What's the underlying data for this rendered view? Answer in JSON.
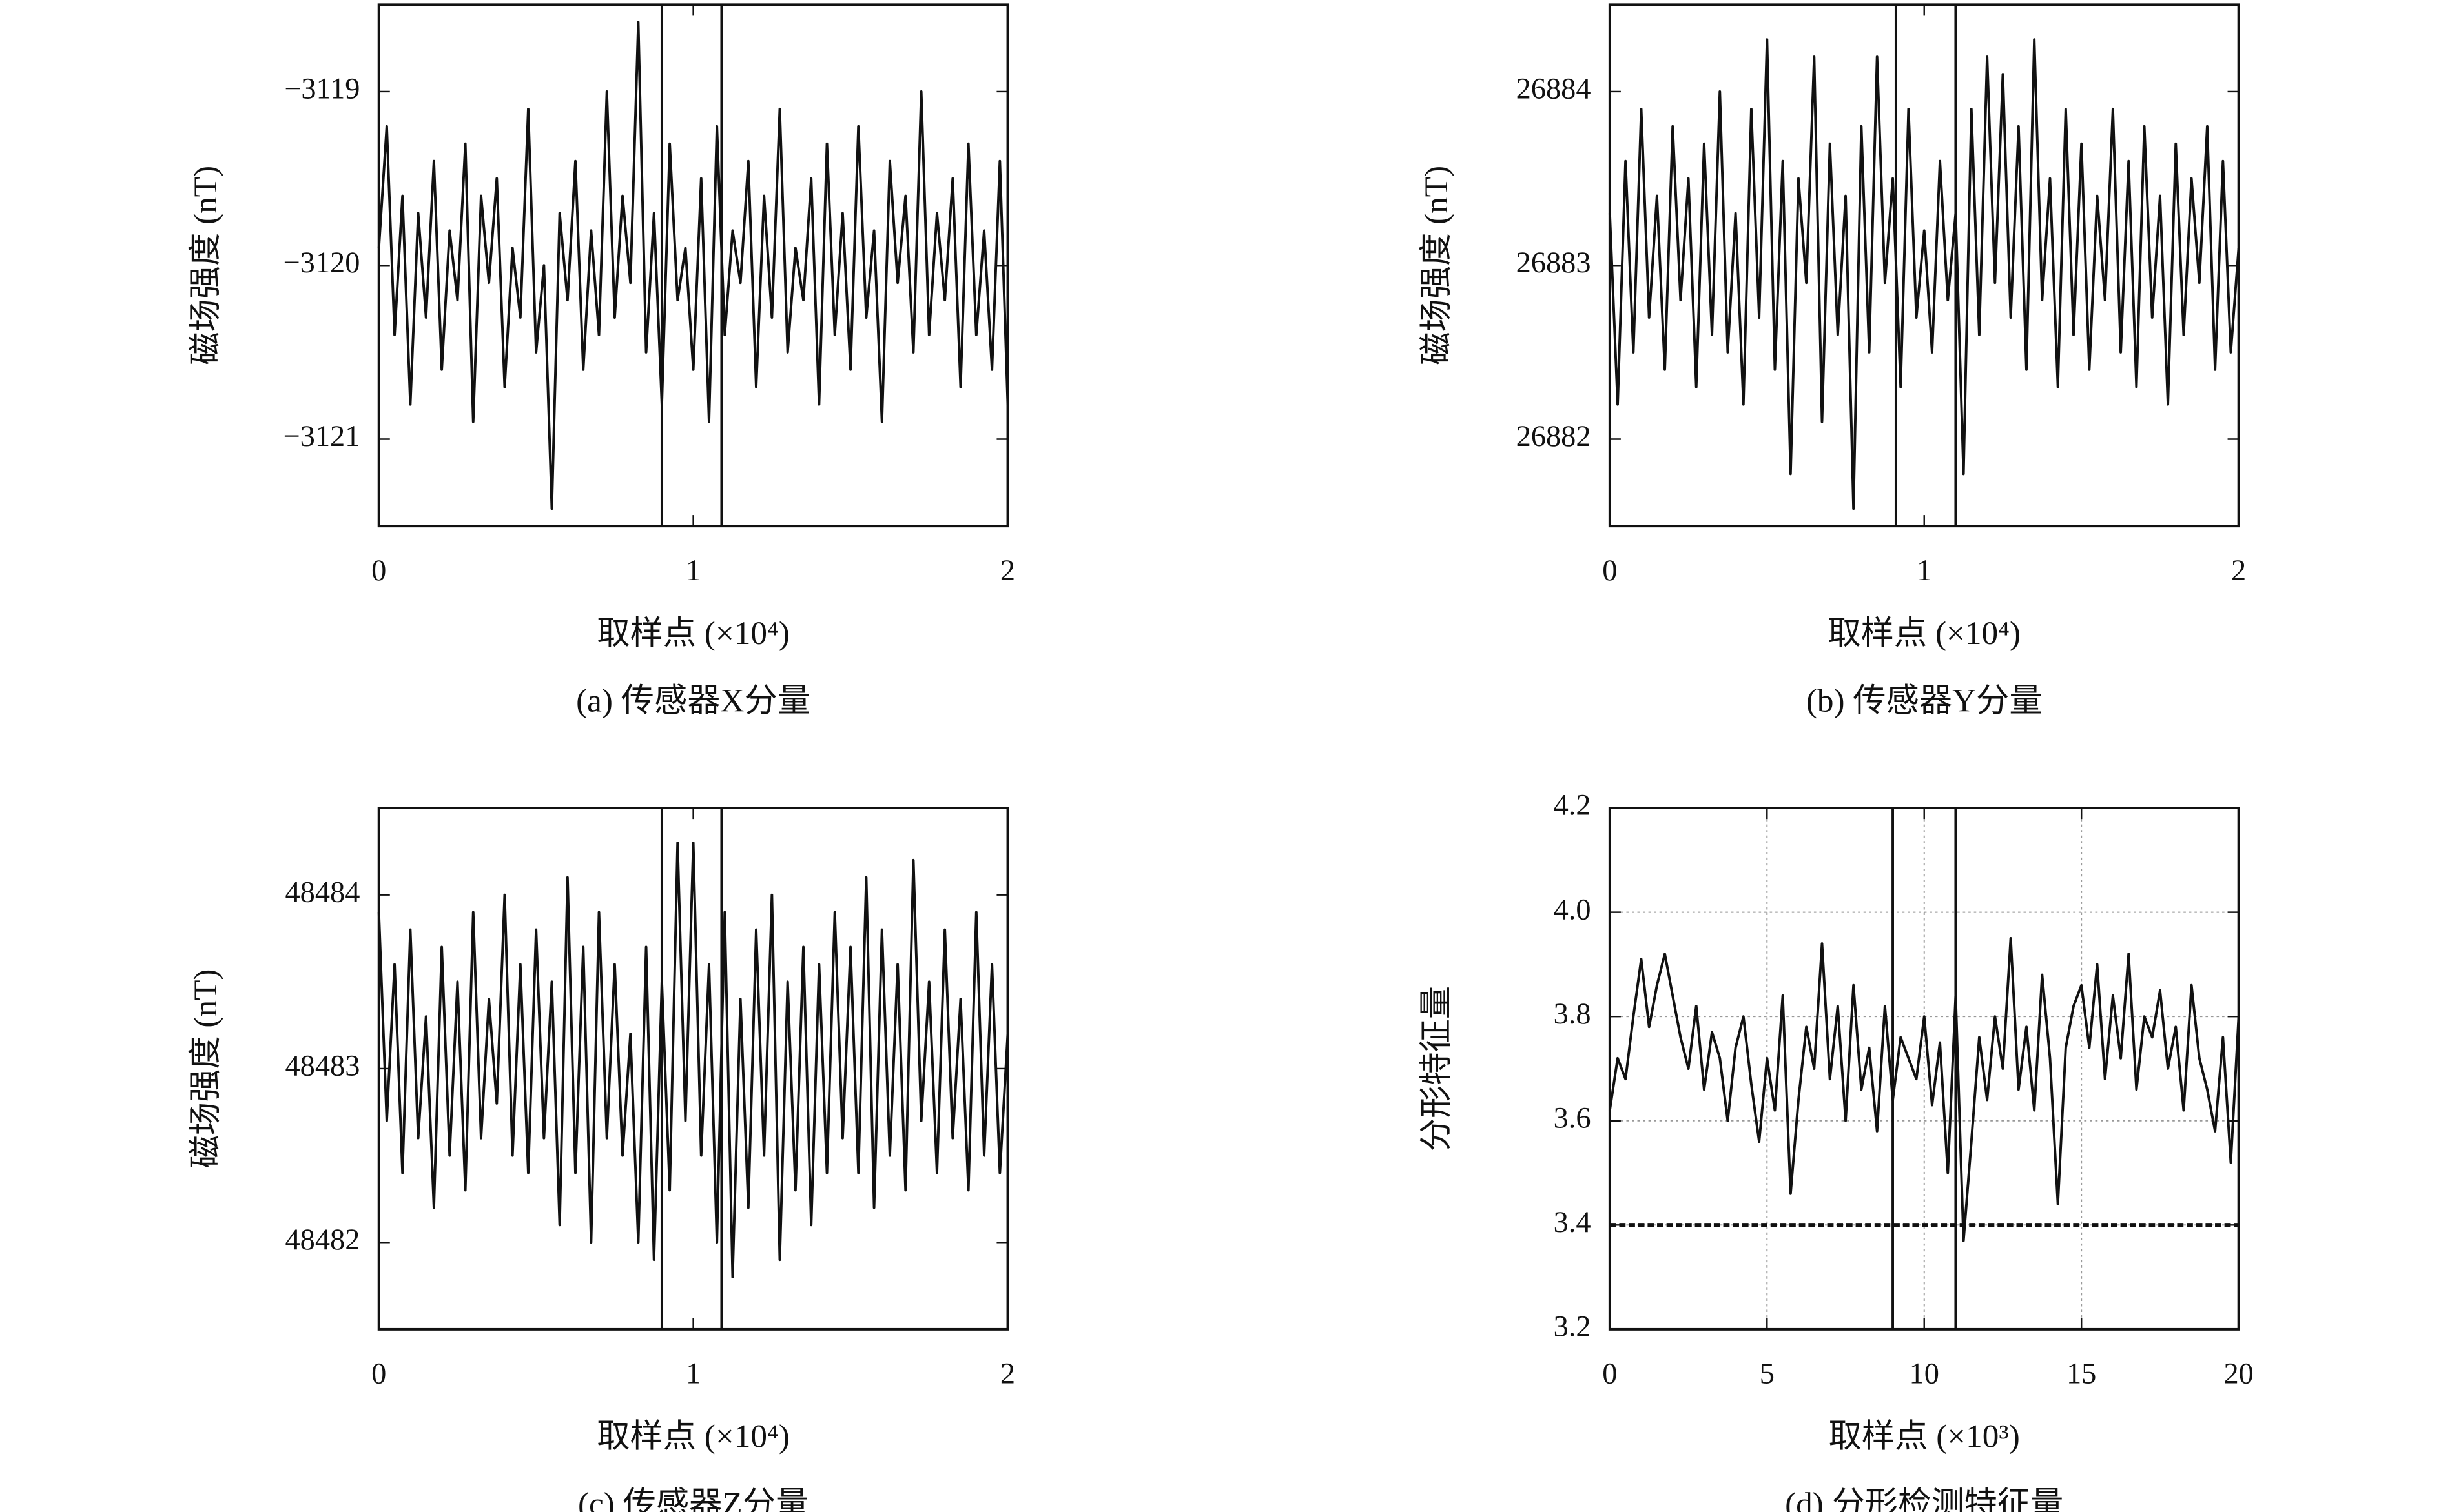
{
  "chart_data": [
    {
      "type": "line",
      "title": "(a) 传感器X分量",
      "xlabel": "取样点 (×10⁴)",
      "ylabel": "磁场强度 (nT)",
      "color": "#111111",
      "x": [
        0,
        0.025,
        0.05,
        0.075,
        0.1,
        0.125,
        0.15,
        0.175,
        0.2,
        0.225,
        0.25,
        0.275,
        0.3,
        0.325,
        0.35,
        0.375,
        0.4,
        0.425,
        0.45,
        0.475,
        0.5,
        0.525,
        0.55,
        0.575,
        0.6,
        0.625,
        0.65,
        0.675,
        0.7,
        0.725,
        0.75,
        0.775,
        0.8,
        0.825,
        0.85,
        0.875,
        0.9,
        0.925,
        0.95,
        0.975,
        1,
        1.025,
        1.05,
        1.075,
        1.1,
        1.125,
        1.15,
        1.175,
        1.2,
        1.225,
        1.25,
        1.275,
        1.3,
        1.325,
        1.35,
        1.375,
        1.4,
        1.425,
        1.45,
        1.475,
        1.5,
        1.525,
        1.55,
        1.575,
        1.6,
        1.625,
        1.65,
        1.675,
        1.7,
        1.725,
        1.75,
        1.775,
        1.8,
        1.825,
        1.85,
        1.875,
        1.9,
        1.925,
        1.95,
        1.975,
        2
      ],
      "values": [
        -3119.9,
        -3119.2,
        -3120.4,
        -3119.6,
        -3120.8,
        -3119.7,
        -3120.3,
        -3119.4,
        -3120.6,
        -3119.8,
        -3120.2,
        -3119.3,
        -3120.9,
        -3119.6,
        -3120.1,
        -3119.5,
        -3120.7,
        -3119.9,
        -3120.3,
        -3119.1,
        -3120.5,
        -3120.0,
        -3121.4,
        -3119.7,
        -3120.2,
        -3119.4,
        -3120.6,
        -3119.8,
        -3120.4,
        -3119.0,
        -3120.3,
        -3119.6,
        -3120.1,
        -3118.6,
        -3120.5,
        -3119.7,
        -3120.8,
        -3119.3,
        -3120.2,
        -3119.9,
        -3120.6,
        -3119.5,
        -3120.9,
        -3119.2,
        -3120.4,
        -3119.8,
        -3120.1,
        -3119.4,
        -3120.7,
        -3119.6,
        -3120.3,
        -3119.1,
        -3120.5,
        -3119.9,
        -3120.2,
        -3119.5,
        -3120.8,
        -3119.3,
        -3120.4,
        -3119.7,
        -3120.6,
        -3119.2,
        -3120.3,
        -3119.8,
        -3120.9,
        -3119.4,
        -3120.1,
        -3119.6,
        -3120.5,
        -3119.0,
        -3120.4,
        -3119.7,
        -3120.2,
        -3119.5,
        -3120.7,
        -3119.3,
        -3120.4,
        -3119.8,
        -3120.6,
        -3119.4,
        -3120.8
      ],
      "xlim": [
        0,
        2
      ],
      "xticks": [
        0,
        1,
        2
      ],
      "ylim": [
        -3121.5,
        -3118.5
      ],
      "yticks": [
        {
          "value": -3121,
          "label": "−3121"
        },
        {
          "value": -3120,
          "label": "−3120"
        },
        {
          "value": -3119,
          "label": "−3119"
        }
      ],
      "vlines": [
        0.9,
        1.09
      ],
      "grid": false
    },
    {
      "type": "line",
      "title": "(b) 传感器Y分量",
      "xlabel": "取样点 (×10⁴)",
      "ylabel": "磁场强度 (nT)",
      "color": "#111111",
      "x": [
        0,
        0.025,
        0.05,
        0.075,
        0.1,
        0.125,
        0.15,
        0.175,
        0.2,
        0.225,
        0.25,
        0.275,
        0.3,
        0.325,
        0.35,
        0.375,
        0.4,
        0.425,
        0.45,
        0.475,
        0.5,
        0.525,
        0.55,
        0.575,
        0.6,
        0.625,
        0.65,
        0.675,
        0.7,
        0.725,
        0.75,
        0.775,
        0.8,
        0.825,
        0.85,
        0.875,
        0.9,
        0.925,
        0.95,
        0.975,
        1,
        1.025,
        1.05,
        1.075,
        1.1,
        1.125,
        1.15,
        1.175,
        1.2,
        1.225,
        1.25,
        1.275,
        1.3,
        1.325,
        1.35,
        1.375,
        1.4,
        1.425,
        1.45,
        1.475,
        1.5,
        1.525,
        1.55,
        1.575,
        1.6,
        1.625,
        1.65,
        1.675,
        1.7,
        1.725,
        1.75,
        1.775,
        1.8,
        1.825,
        1.85,
        1.875,
        1.9,
        1.925,
        1.95,
        1.975,
        2
      ],
      "values": [
        26883.3,
        26882.2,
        26883.6,
        26882.5,
        26883.9,
        26882.7,
        26883.4,
        26882.4,
        26883.8,
        26882.8,
        26883.5,
        26882.3,
        26883.7,
        26882.6,
        26884.0,
        26882.5,
        26883.3,
        26882.2,
        26883.9,
        26882.7,
        26884.3,
        26882.4,
        26883.6,
        26881.8,
        26883.5,
        26882.9,
        26884.2,
        26882.1,
        26883.7,
        26882.6,
        26883.4,
        26881.6,
        26883.8,
        26882.5,
        26884.2,
        26882.9,
        26883.5,
        26882.3,
        26883.9,
        26882.7,
        26883.2,
        26882.5,
        26883.6,
        26882.8,
        26883.3,
        26881.8,
        26883.9,
        26882.6,
        26884.2,
        26882.9,
        26884.1,
        26882.7,
        26883.8,
        26882.4,
        26884.3,
        26882.8,
        26883.5,
        26882.3,
        26883.9,
        26882.6,
        26883.7,
        26882.4,
        26883.4,
        26882.8,
        26883.9,
        26882.5,
        26883.6,
        26882.3,
        26883.8,
        26882.7,
        26883.4,
        26882.2,
        26883.7,
        26882.6,
        26883.5,
        26882.9,
        26883.8,
        26882.4,
        26883.6,
        26882.5,
        26883.1
      ],
      "xlim": [
        0,
        2
      ],
      "xticks": [
        0,
        1,
        2
      ],
      "ylim": [
        26881.5,
        26884.5
      ],
      "yticks": [
        26882,
        26883,
        26884
      ],
      "vlines": [
        0.91,
        1.1
      ],
      "grid": false
    },
    {
      "type": "line",
      "title": "(c) 传感器Z分量",
      "xlabel": "取样点 (×10⁴)",
      "ylabel": "磁场强度 (nT)",
      "color": "#111111",
      "x": [
        0,
        0.025,
        0.05,
        0.075,
        0.1,
        0.125,
        0.15,
        0.175,
        0.2,
        0.225,
        0.25,
        0.275,
        0.3,
        0.325,
        0.35,
        0.375,
        0.4,
        0.425,
        0.45,
        0.475,
        0.5,
        0.525,
        0.55,
        0.575,
        0.6,
        0.625,
        0.65,
        0.675,
        0.7,
        0.725,
        0.75,
        0.775,
        0.8,
        0.825,
        0.85,
        0.875,
        0.9,
        0.925,
        0.95,
        0.975,
        1,
        1.025,
        1.05,
        1.075,
        1.1,
        1.125,
        1.15,
        1.175,
        1.2,
        1.225,
        1.25,
        1.275,
        1.3,
        1.325,
        1.35,
        1.375,
        1.4,
        1.425,
        1.45,
        1.475,
        1.5,
        1.525,
        1.55,
        1.575,
        1.6,
        1.625,
        1.65,
        1.675,
        1.7,
        1.725,
        1.75,
        1.775,
        1.8,
        1.825,
        1.85,
        1.875,
        1.9,
        1.925,
        1.95,
        1.975,
        2
      ],
      "values": [
        48483.9,
        48482.7,
        48483.6,
        48482.4,
        48483.8,
        48482.6,
        48483.3,
        48482.2,
        48483.7,
        48482.5,
        48483.5,
        48482.3,
        48483.9,
        48482.6,
        48483.4,
        48482.8,
        48484.0,
        48482.5,
        48483.6,
        48482.4,
        48483.8,
        48482.6,
        48483.5,
        48482.1,
        48484.1,
        48482.4,
        48483.7,
        48482.0,
        48483.9,
        48482.6,
        48483.6,
        48482.5,
        48483.2,
        48482.0,
        48483.7,
        48481.9,
        48483.5,
        48482.3,
        48484.3,
        48482.7,
        48484.3,
        48482.5,
        48483.6,
        48482.0,
        48483.9,
        48481.8,
        48483.4,
        48482.2,
        48483.8,
        48482.5,
        48484.0,
        48481.9,
        48483.5,
        48482.3,
        48483.7,
        48482.1,
        48483.6,
        48482.4,
        48483.9,
        48482.6,
        48483.7,
        48482.4,
        48484.1,
        48482.2,
        48483.8,
        48482.5,
        48483.6,
        48482.3,
        48484.2,
        48482.7,
        48483.5,
        48482.4,
        48483.8,
        48482.6,
        48483.4,
        48482.3,
        48483.9,
        48482.5,
        48483.6,
        48482.4,
        48483.2
      ],
      "xlim": [
        0,
        2
      ],
      "xticks": [
        0,
        1,
        2
      ],
      "ylim": [
        48481.5,
        48484.5
      ],
      "yticks": [
        48482,
        48483,
        48484
      ],
      "vlines": [
        0.9,
        1.09
      ],
      "grid": false
    },
    {
      "type": "line",
      "title": "(d) 分形检测特征量",
      "xlabel": "取样点 (×10³)",
      "ylabel": "分形特征量",
      "color": "#111111",
      "x": [
        0,
        0.25,
        0.5,
        0.75,
        1,
        1.25,
        1.5,
        1.75,
        2,
        2.25,
        2.5,
        2.75,
        3,
        3.25,
        3.5,
        3.75,
        4,
        4.25,
        4.5,
        4.75,
        5,
        5.25,
        5.5,
        5.75,
        6,
        6.25,
        6.5,
        6.75,
        7,
        7.25,
        7.5,
        7.75,
        8,
        8.25,
        8.5,
        8.75,
        9,
        9.25,
        9.5,
        9.75,
        10,
        10.25,
        10.5,
        10.75,
        11,
        11.25,
        11.5,
        11.75,
        12,
        12.25,
        12.5,
        12.75,
        13,
        13.25,
        13.5,
        13.75,
        14,
        14.25,
        14.5,
        14.75,
        15,
        15.25,
        15.5,
        15.75,
        16,
        16.25,
        16.5,
        16.75,
        17,
        17.25,
        17.5,
        17.75,
        18,
        18.25,
        18.5,
        18.75,
        19,
        19.25,
        19.5,
        19.75,
        20
      ],
      "values": [
        3.62,
        3.72,
        3.68,
        3.8,
        3.91,
        3.78,
        3.86,
        3.92,
        3.84,
        3.76,
        3.7,
        3.82,
        3.66,
        3.77,
        3.72,
        3.6,
        3.74,
        3.8,
        3.67,
        3.56,
        3.72,
        3.62,
        3.84,
        3.46,
        3.64,
        3.78,
        3.7,
        3.94,
        3.68,
        3.82,
        3.6,
        3.86,
        3.66,
        3.74,
        3.58,
        3.82,
        3.64,
        3.76,
        3.72,
        3.68,
        3.8,
        3.63,
        3.75,
        3.5,
        3.84,
        3.37,
        3.56,
        3.76,
        3.64,
        3.8,
        3.7,
        3.95,
        3.66,
        3.78,
        3.62,
        3.88,
        3.72,
        3.44,
        3.74,
        3.82,
        3.86,
        3.74,
        3.9,
        3.68,
        3.84,
        3.72,
        3.92,
        3.66,
        3.8,
        3.76,
        3.85,
        3.7,
        3.78,
        3.62,
        3.86,
        3.72,
        3.66,
        3.58,
        3.76,
        3.52,
        3.8
      ],
      "xlim": [
        0,
        20
      ],
      "xticks": [
        0,
        5,
        10,
        15,
        20
      ],
      "ylim": [
        3.2,
        4.2
      ],
      "yticks": [
        3.2,
        3.4,
        3.6,
        3.8,
        {
          "value": 4,
          "label": "4.0"
        },
        4.2
      ],
      "vlines": [
        9,
        11
      ],
      "threshold": 3.4,
      "grid": true
    }
  ]
}
